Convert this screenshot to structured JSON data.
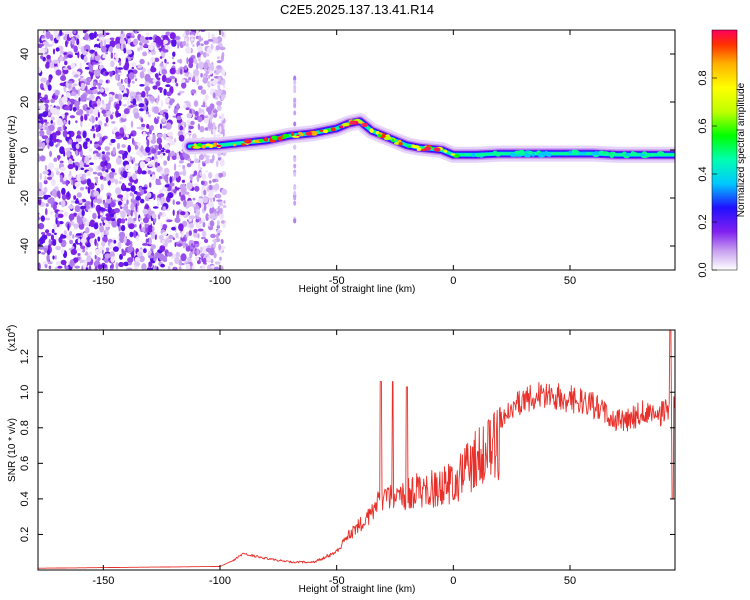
{
  "title": "C2E5.2025.137.13.41.R14",
  "chart_data": [
    {
      "type": "heatmap",
      "xlabel": "Height of straight line (km)",
      "ylabel": "Frequency (Hz)",
      "xlim": [
        -178,
        95
      ],
      "ylim": [
        -50,
        50
      ],
      "x_ticks": [
        -150,
        -100,
        -50,
        0,
        50
      ],
      "y_ticks": [
        -40,
        -20,
        0,
        20,
        40
      ],
      "colorbar": {
        "label": "Normalized spectral amplitude",
        "range": [
          0,
          1
        ],
        "ticks": [
          0.0,
          0.2,
          0.4,
          0.6,
          0.8
        ],
        "colormap": [
          "#ffffff",
          "#c8a0f0",
          "#8020f0",
          "#2010ff",
          "#00c8ff",
          "#00ffb0",
          "#00ff00",
          "#c0ff00",
          "#ffff00",
          "#ffb000",
          "#ff3000",
          "#ff0060"
        ]
      },
      "noise_region_x": [
        -178,
        -98
      ],
      "ridge": {
        "x": [
          -113,
          -100,
          -90,
          -80,
          -70,
          -60,
          -50,
          -45,
          -40,
          -35,
          -30,
          -25,
          -20,
          -15,
          -10,
          -5,
          0,
          10,
          20,
          30,
          40,
          50,
          60,
          70,
          80,
          90,
          95
        ],
        "y": [
          1.5,
          2,
          3,
          4,
          6,
          7,
          9,
          11,
          12,
          8,
          6,
          4,
          2,
          1,
          0.5,
          0,
          -2,
          -2,
          -1.5,
          -1.5,
          -1.5,
          -1.5,
          -1.5,
          -2,
          -2,
          -2,
          -2
        ]
      }
    },
    {
      "type": "line",
      "xlabel": "Height of straight line (km)",
      "ylabel": "SNR (10 * v/v)",
      "y_multiplier": "(x10",
      "y_multiplier_exp": "4",
      "y_multiplier_close": ")",
      "xlim": [
        -178,
        95
      ],
      "ylim": [
        0,
        1.35
      ],
      "x_ticks": [
        -150,
        -100,
        -50,
        0,
        50
      ],
      "y_ticks": [
        0.2,
        0.4,
        0.6,
        0.8,
        1.0,
        1.2
      ],
      "y_tick_labels": [
        "0.2",
        "0.4",
        "0.6",
        "0.8",
        "1.0",
        "1.2"
      ],
      "series": [
        {
          "color": "#e8302a",
          "envelope": {
            "x": [
              -178,
              -100,
              -95,
              -90,
              -80,
              -70,
              -60,
              -55,
              -50,
              -45,
              -40,
              -35,
              -30,
              -25,
              -20,
              -15,
              -10,
              -5,
              0,
              5,
              10,
              15,
              20,
              25,
              30,
              35,
              40,
              45,
              50,
              55,
              60,
              65,
              70,
              75,
              80,
              85,
              90,
              95
            ],
            "y": [
              0.01,
              0.02,
              0.05,
              0.1,
              0.07,
              0.05,
              0.05,
              0.08,
              0.12,
              0.22,
              0.3,
              0.38,
              0.5,
              0.48,
              0.52,
              0.55,
              0.56,
              0.58,
              0.63,
              0.7,
              0.8,
              0.85,
              0.92,
              0.98,
              1.03,
              1.06,
              1.07,
              1.05,
              1.04,
              1.02,
              1.0,
              0.95,
              0.9,
              0.92,
              0.95,
              0.96,
              0.95,
              1.0
            ]
          },
          "spikes": [
            {
              "x": -31,
              "y": 1.06
            },
            {
              "x": -26,
              "y": 1.06
            },
            {
              "x": -20,
              "y": 1.03
            },
            {
              "x": 93,
              "y": 1.36
            },
            {
              "x": 94,
              "y": 0.4
            }
          ]
        }
      ]
    }
  ]
}
